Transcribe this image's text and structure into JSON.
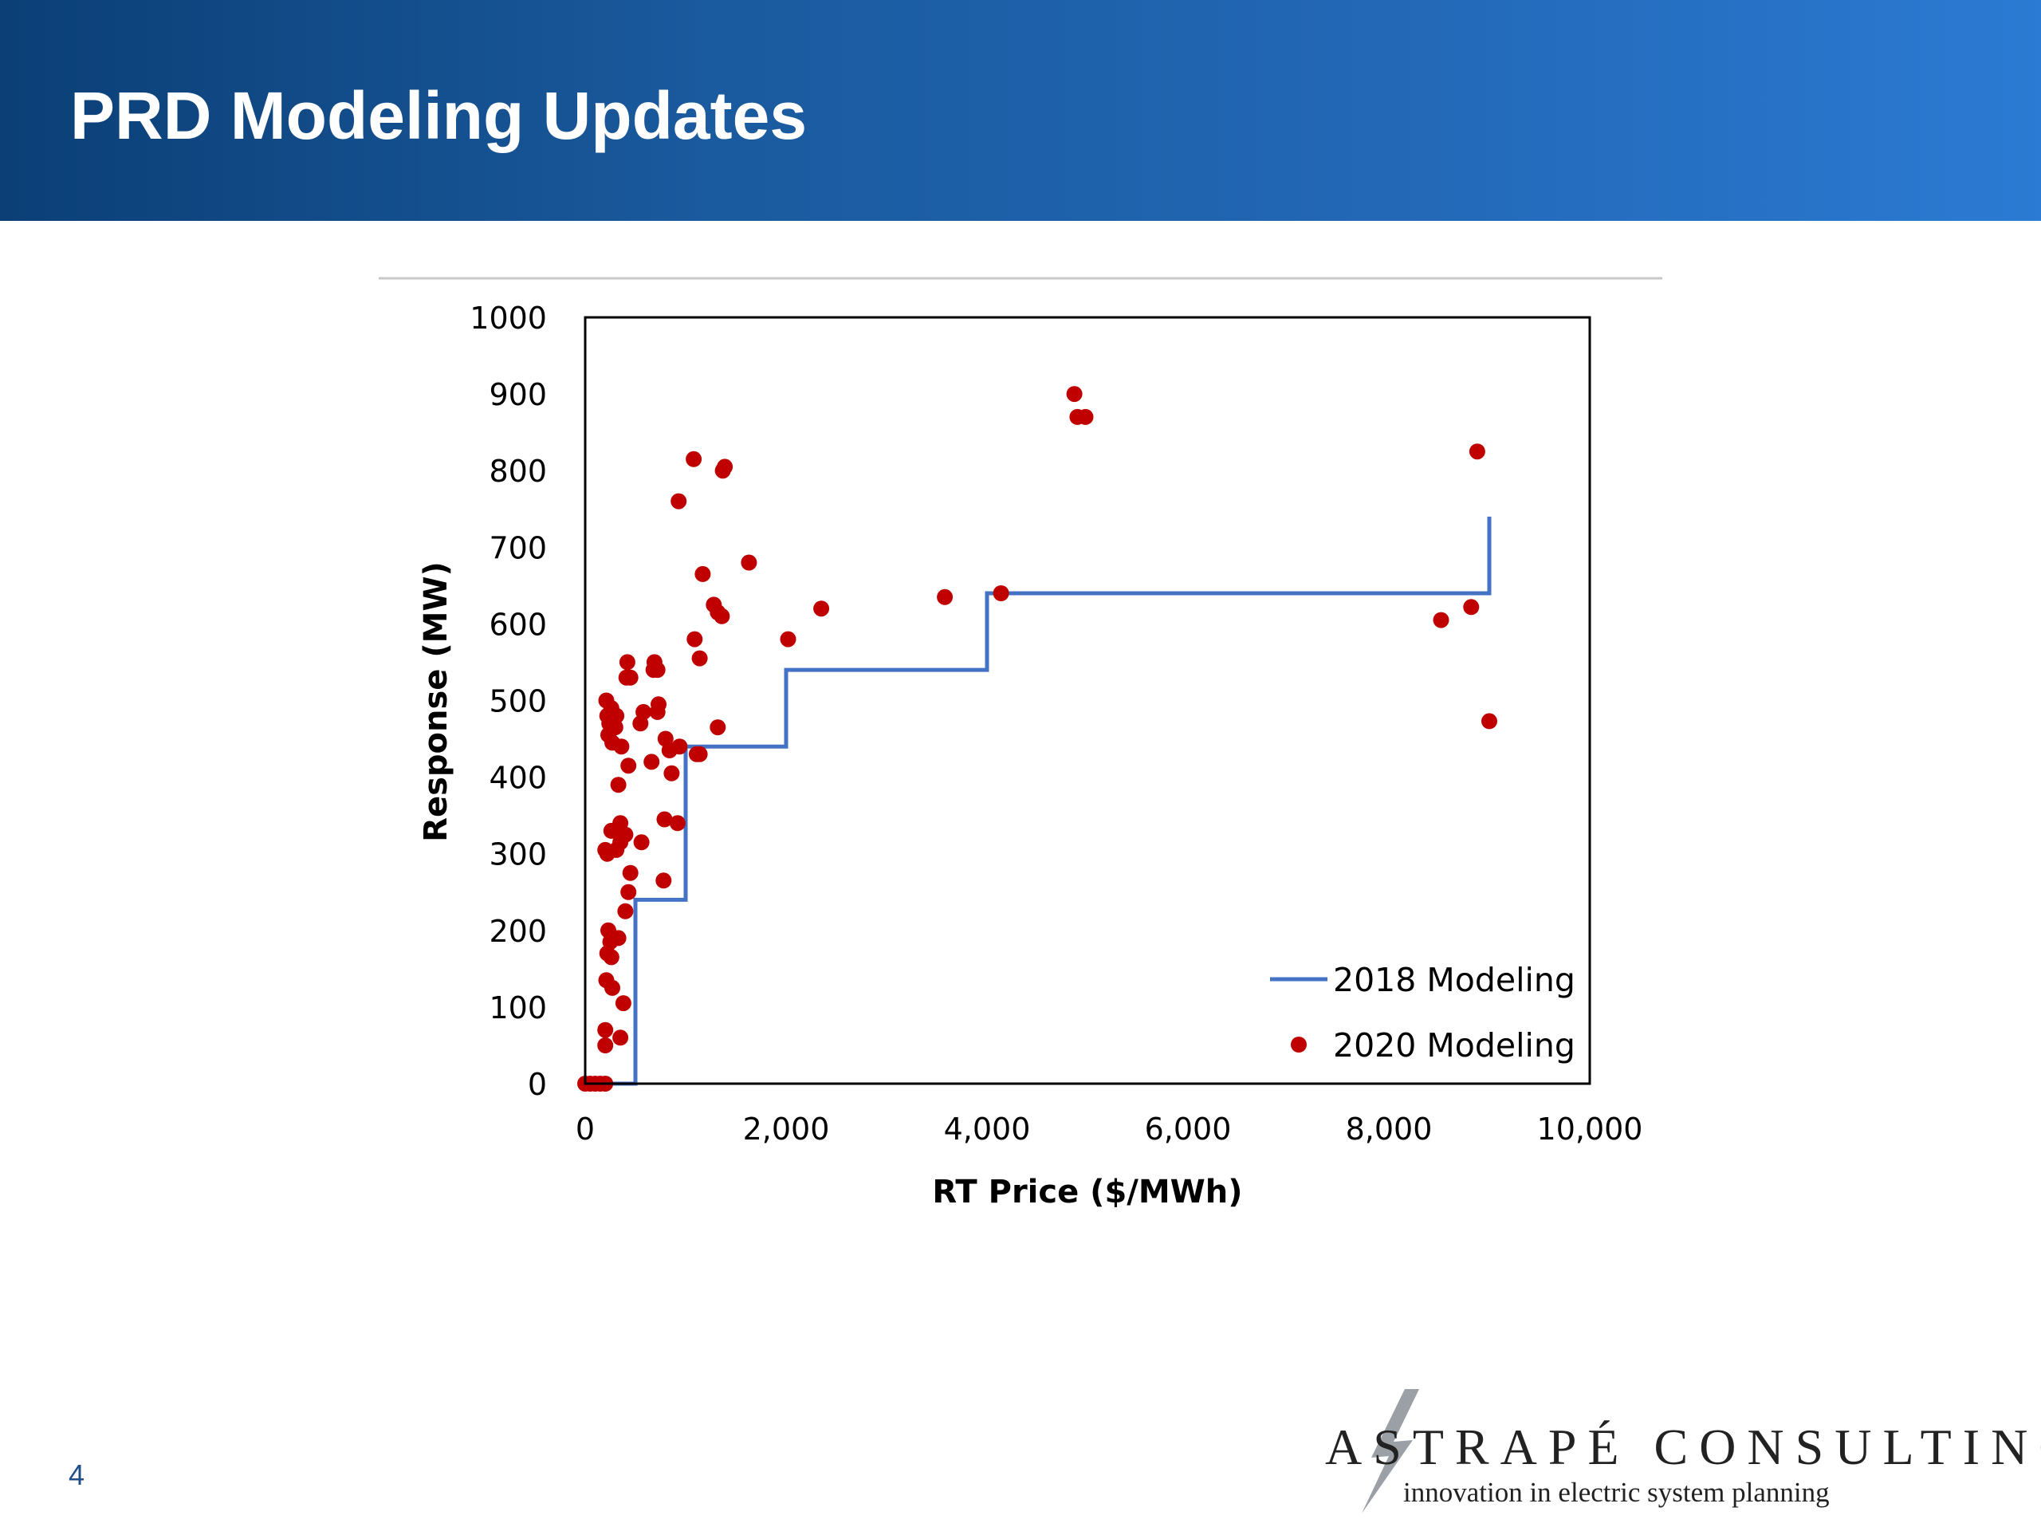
{
  "slide": {
    "title": "PRD Modeling Updates",
    "page_number": "4"
  },
  "logo": {
    "name": "ASTRAPÉ CONSULTING",
    "tagline": "innovation in electric system planning"
  },
  "colors": {
    "header_start": "#0b3f76",
    "header_end": "#2b7ad3",
    "series_2018": "#4472c4",
    "series_2020": "#c00000"
  },
  "chart_data": {
    "type": "scatter",
    "title": "",
    "xlabel": "RT Price ($/MWh)",
    "ylabel": "Response (MW)",
    "xlim": [
      0,
      10000
    ],
    "ylim": [
      0,
      1000
    ],
    "x_ticks": [
      0,
      2000,
      4000,
      6000,
      8000,
      10000
    ],
    "x_tick_labels": [
      "0",
      "2,000",
      "4,000",
      "6,000",
      "8,000",
      "10,000"
    ],
    "y_ticks": [
      0,
      100,
      200,
      300,
      400,
      500,
      600,
      700,
      800,
      900,
      1000
    ],
    "y_tick_labels": [
      "0",
      "100",
      "200",
      "300",
      "400",
      "500",
      "600",
      "700",
      "800",
      "900",
      "1000"
    ],
    "grid": false,
    "legend_position": "bottom-right",
    "series": [
      {
        "name": "2018 Modeling",
        "kind": "step-line",
        "color": "#4472c4",
        "points": [
          [
            0,
            0
          ],
          [
            500,
            0
          ],
          [
            500,
            240
          ],
          [
            1000,
            240
          ],
          [
            1000,
            440
          ],
          [
            2000,
            440
          ],
          [
            2000,
            540
          ],
          [
            4000,
            540
          ],
          [
            4000,
            640
          ],
          [
            9000,
            640
          ],
          [
            9000,
            740
          ]
        ]
      },
      {
        "name": "2020 Modeling",
        "kind": "scatter",
        "color": "#c00000",
        "points": [
          [
            0,
            0
          ],
          [
            50,
            0
          ],
          [
            100,
            0
          ],
          [
            150,
            0
          ],
          [
            200,
            0
          ],
          [
            200,
            50
          ],
          [
            200,
            70
          ],
          [
            350,
            60
          ],
          [
            380,
            105
          ],
          [
            210,
            135
          ],
          [
            270,
            125
          ],
          [
            230,
            200
          ],
          [
            260,
            165
          ],
          [
            220,
            170
          ],
          [
            250,
            185
          ],
          [
            330,
            190
          ],
          [
            400,
            225
          ],
          [
            430,
            250
          ],
          [
            450,
            275
          ],
          [
            200,
            305
          ],
          [
            220,
            300
          ],
          [
            310,
            305
          ],
          [
            350,
            315
          ],
          [
            560,
            315
          ],
          [
            260,
            330
          ],
          [
            350,
            340
          ],
          [
            400,
            325
          ],
          [
            330,
            390
          ],
          [
            430,
            415
          ],
          [
            660,
            420
          ],
          [
            860,
            405
          ],
          [
            790,
            345
          ],
          [
            920,
            340
          ],
          [
            780,
            265
          ],
          [
            270,
            445
          ],
          [
            230,
            455
          ],
          [
            360,
            440
          ],
          [
            240,
            470
          ],
          [
            300,
            465
          ],
          [
            220,
            480
          ],
          [
            260,
            490
          ],
          [
            310,
            480
          ],
          [
            210,
            500
          ],
          [
            550,
            470
          ],
          [
            580,
            485
          ],
          [
            720,
            485
          ],
          [
            730,
            495
          ],
          [
            800,
            450
          ],
          [
            840,
            435
          ],
          [
            940,
            440
          ],
          [
            1110,
            430
          ],
          [
            1140,
            430
          ],
          [
            1320,
            465
          ],
          [
            410,
            530
          ],
          [
            450,
            530
          ],
          [
            420,
            550
          ],
          [
            680,
            540
          ],
          [
            720,
            540
          ],
          [
            690,
            550
          ],
          [
            1090,
            580
          ],
          [
            1140,
            555
          ],
          [
            1280,
            625
          ],
          [
            1320,
            615
          ],
          [
            1360,
            610
          ],
          [
            1170,
            665
          ],
          [
            1630,
            680
          ],
          [
            2020,
            580
          ],
          [
            2350,
            620
          ],
          [
            3580,
            635
          ],
          [
            4140,
            640
          ],
          [
            930,
            760
          ],
          [
            1080,
            815
          ],
          [
            1370,
            800
          ],
          [
            1390,
            805
          ],
          [
            4870,
            900
          ],
          [
            4900,
            870
          ],
          [
            4980,
            870
          ],
          [
            8880,
            825
          ],
          [
            8520,
            605
          ],
          [
            8820,
            622
          ],
          [
            9000,
            473
          ]
        ]
      }
    ]
  }
}
